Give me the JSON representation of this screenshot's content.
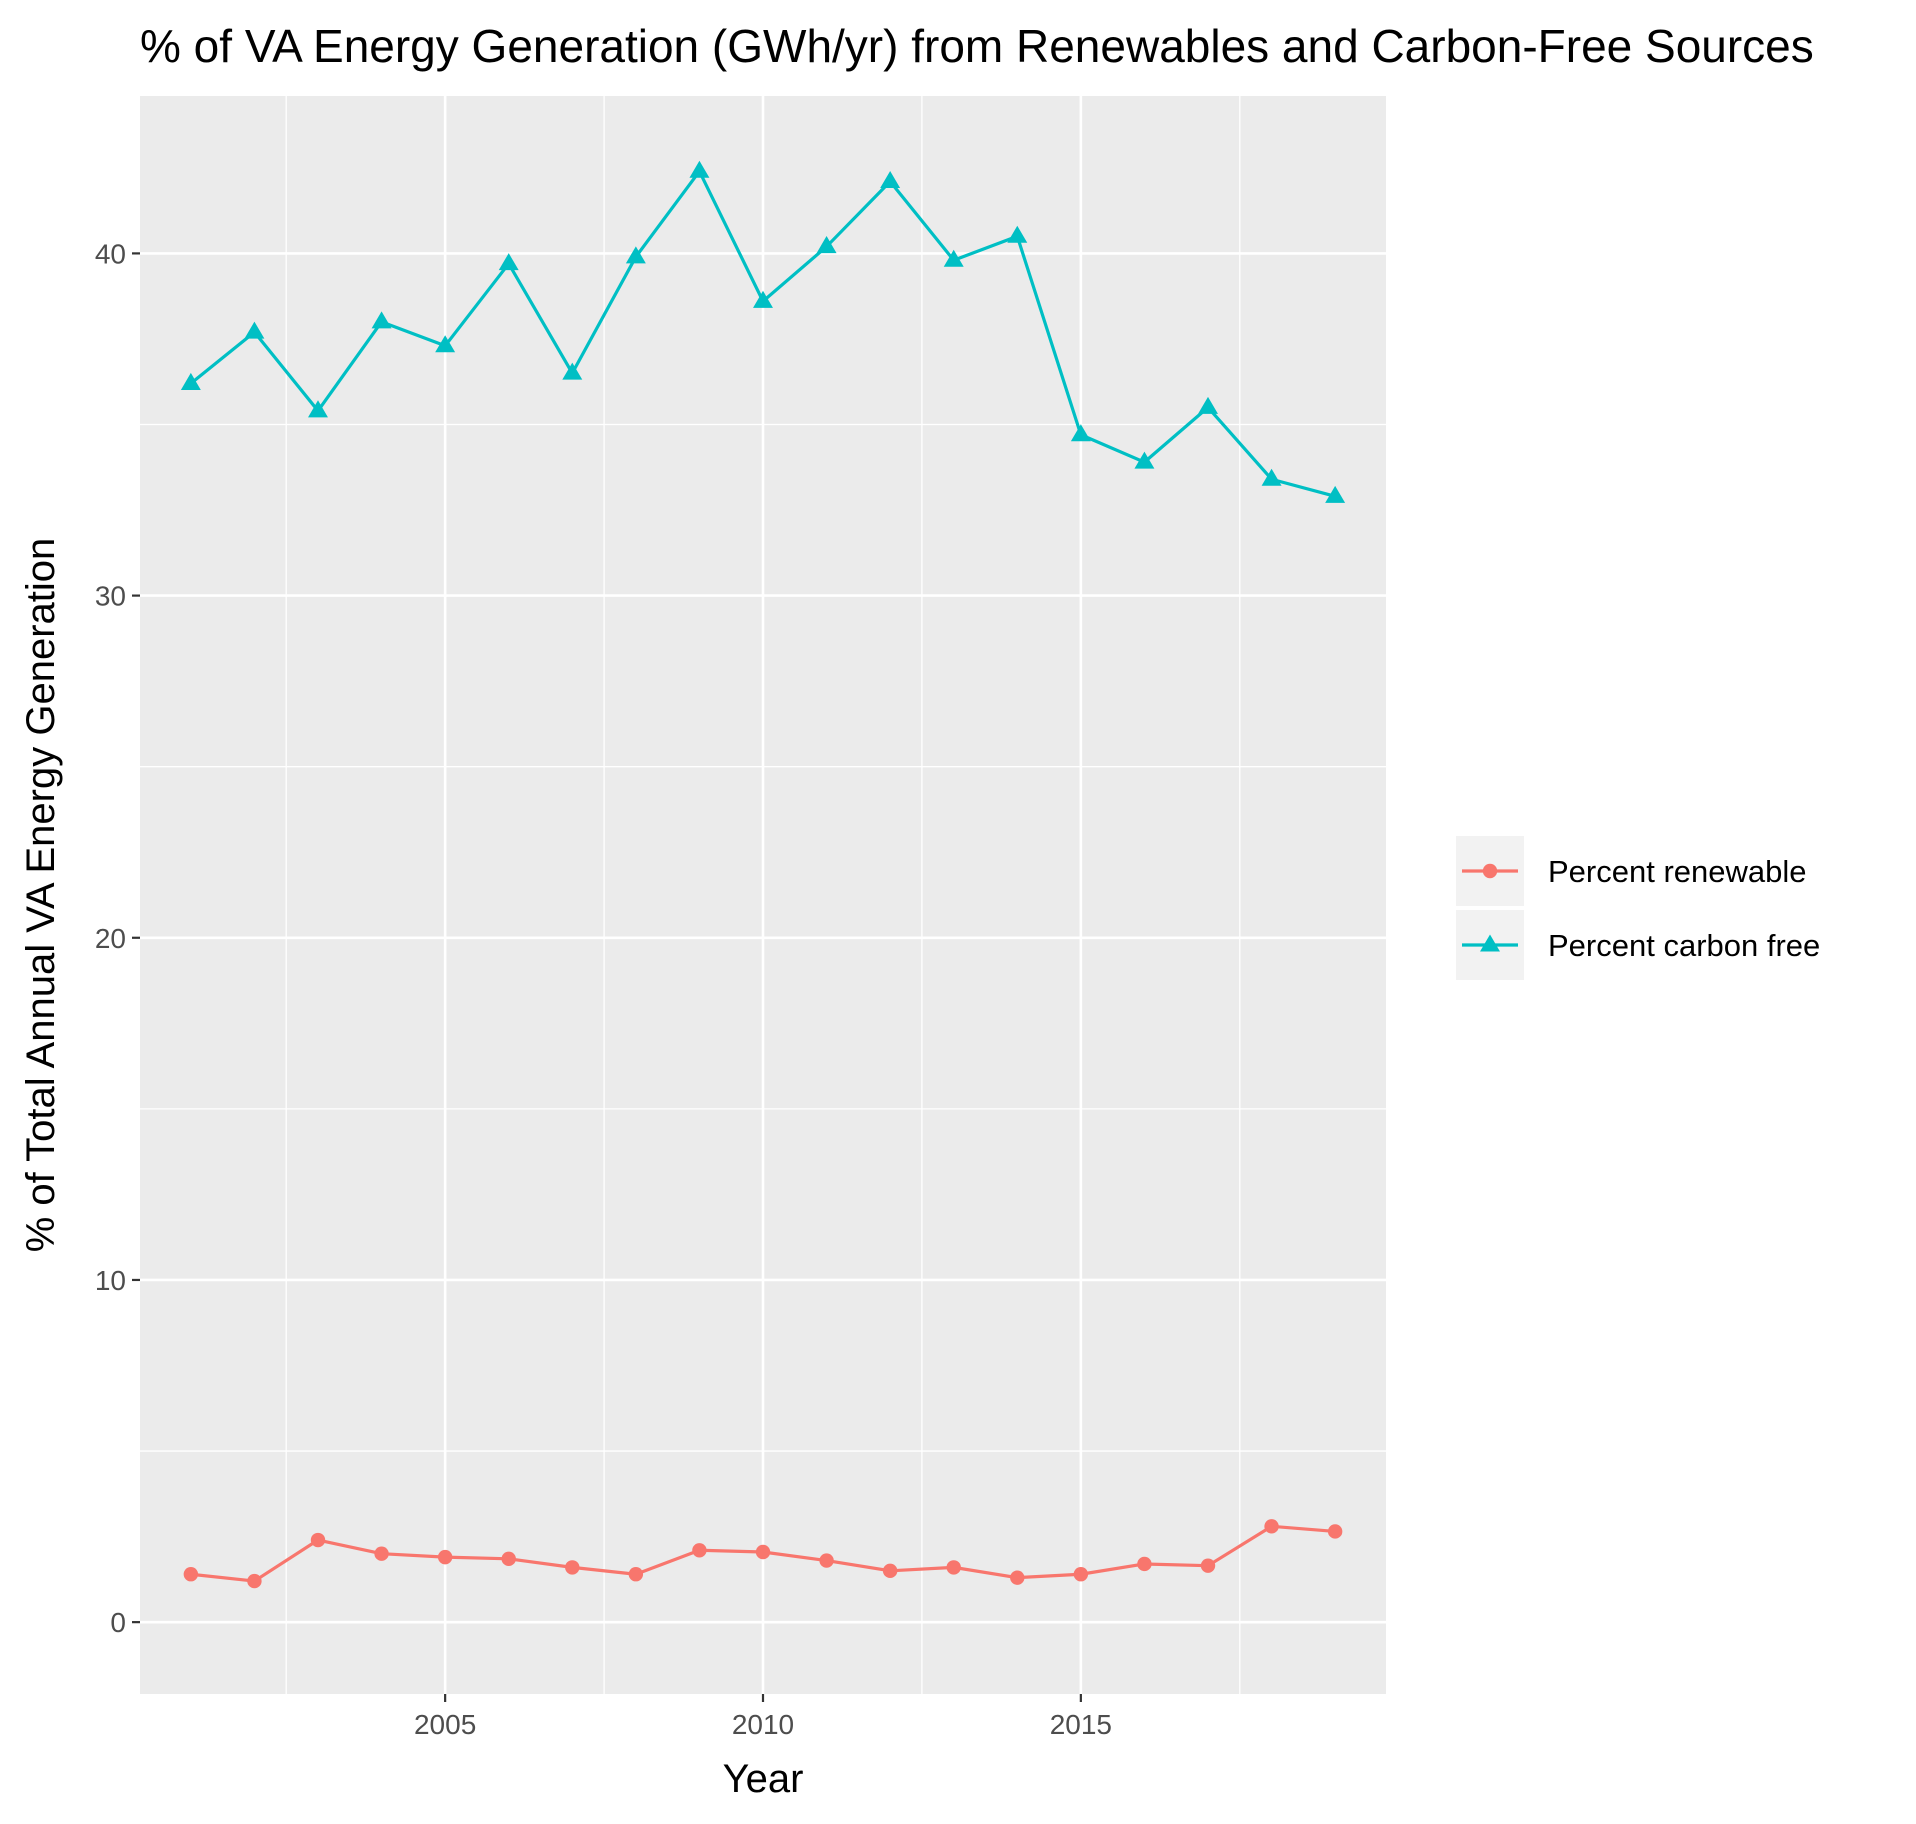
{
  "chart_data": {
    "type": "line",
    "title": "% of VA Energy Generation (GWh/yr) from Renewables and Carbon-Free Sources",
    "xlabel": "Year",
    "ylabel": "% of Total Annual VA Energy Generation",
    "xlim": [
      2000.2,
      2019.8
    ],
    "ylim": [
      -2.1,
      44.6
    ],
    "x_ticks": [
      2005,
      2010,
      2015
    ],
    "x_minor_ticks": [
      2002.5,
      2007.5,
      2012.5,
      2017.5
    ],
    "y_ticks": [
      0,
      10,
      20,
      30,
      40
    ],
    "y_minor_ticks": [
      5,
      15,
      25,
      35
    ],
    "grid": true,
    "legend_position": "right",
    "x": [
      2001,
      2002,
      2003,
      2004,
      2005,
      2006,
      2007,
      2008,
      2009,
      2010,
      2011,
      2012,
      2013,
      2014,
      2015,
      2016,
      2017,
      2018,
      2019
    ],
    "series": [
      {
        "name": "Percent renewable",
        "color": "#F8766D",
        "marker": "circle",
        "values": [
          1.4,
          1.2,
          2.4,
          2.0,
          1.9,
          1.85,
          1.6,
          1.4,
          2.1,
          2.05,
          1.8,
          1.5,
          1.6,
          1.3,
          1.4,
          1.7,
          1.65,
          2.8,
          2.65
        ]
      },
      {
        "name": "Percent carbon free",
        "color": "#00BFC4",
        "marker": "triangle",
        "values": [
          36.2,
          37.7,
          35.4,
          38.0,
          37.3,
          39.7,
          36.5,
          39.9,
          42.4,
          38.6,
          40.2,
          42.1,
          39.8,
          40.5,
          34.7,
          33.9,
          35.5,
          33.4,
          32.9
        ]
      }
    ]
  }
}
